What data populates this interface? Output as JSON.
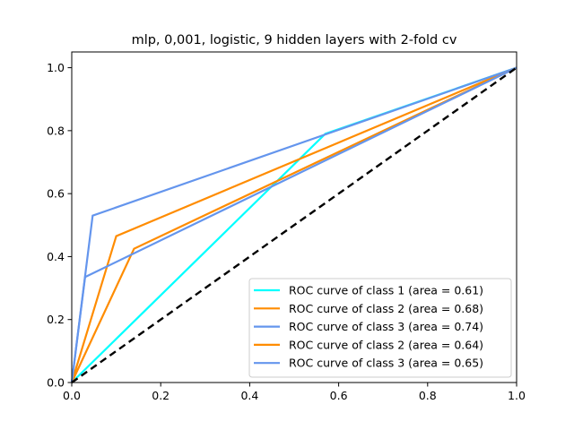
{
  "chart_data": {
    "type": "line",
    "title": "mlp, 0,001, logistic, 9 hidden layers with 2-fold cv",
    "xlabel": "",
    "ylabel": "",
    "xlim": [
      0.0,
      1.0
    ],
    "ylim": [
      0.0,
      1.05
    ],
    "x_ticks": [
      "0.0",
      "0.2",
      "0.4",
      "0.6",
      "0.8",
      "1.0"
    ],
    "y_ticks": [
      "0.0",
      "0.2",
      "0.4",
      "0.6",
      "0.8",
      "1.0"
    ],
    "grid": false,
    "legend_position": "lower right",
    "series": [
      {
        "name": "ROC curve of class 1 (area = 0.61)",
        "color": "#00ffff",
        "x": [
          0.0,
          0.57,
          1.0
        ],
        "y": [
          0.0,
          0.79,
          1.0
        ]
      },
      {
        "name": "ROC curve of class 2 (area = 0.68)",
        "color": "#ff8c00",
        "x": [
          0.0,
          0.1,
          1.0
        ],
        "y": [
          0.0,
          0.465,
          1.0
        ]
      },
      {
        "name": "ROC curve of class 3 (area = 0.74)",
        "color": "#6495ed",
        "x": [
          0.0,
          0.047,
          1.0
        ],
        "y": [
          0.0,
          0.53,
          1.0
        ]
      },
      {
        "name": "ROC curve of class 2 (area = 0.64)",
        "color": "#ff8c00",
        "x": [
          0.0,
          0.14,
          1.0
        ],
        "y": [
          0.0,
          0.425,
          1.0
        ]
      },
      {
        "name": "ROC curve of class 3 (area = 0.65)",
        "color": "#6495ed",
        "x": [
          0.0,
          0.03,
          1.0
        ],
        "y": [
          0.0,
          0.335,
          1.0
        ]
      }
    ],
    "reference_line": {
      "x": [
        0.0,
        1.0
      ],
      "y": [
        0.0,
        1.0
      ],
      "color": "#000000",
      "style": "dashed"
    }
  }
}
